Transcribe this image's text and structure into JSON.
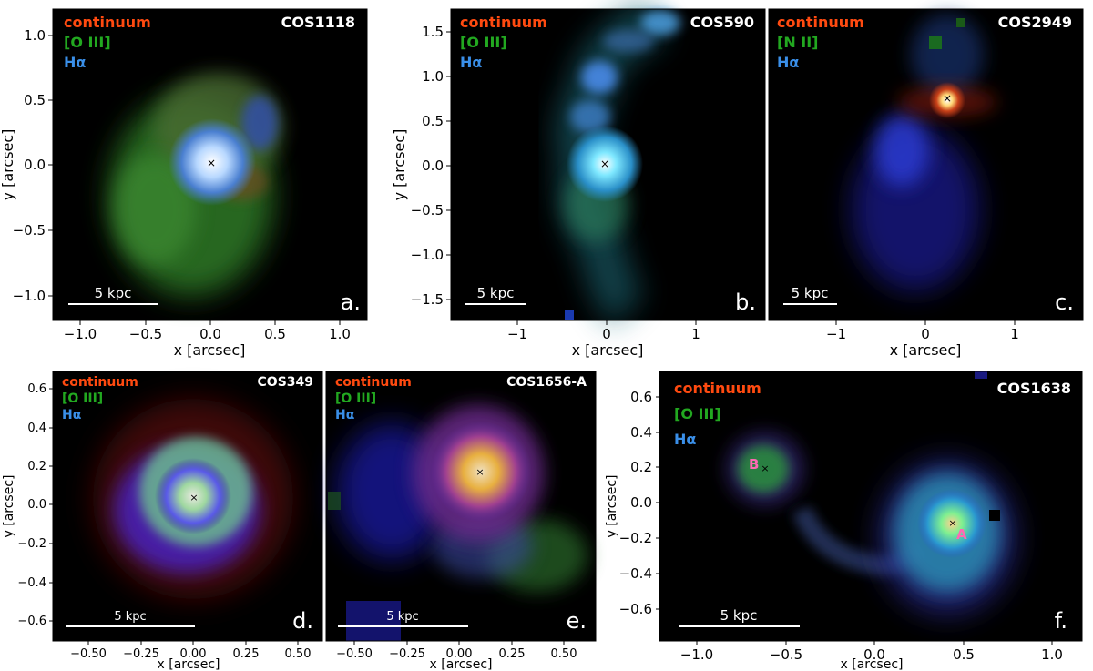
{
  "colors": {
    "continuum": "#ff4a10",
    "oiii": "#22a820",
    "halpha": "#3a8fe8",
    "component": "#ff69b4"
  },
  "legend": {
    "continuum": "continuum",
    "oiii": "[O III]",
    "nii": "[N II]",
    "halpha": "Hα"
  },
  "axes": {
    "xlabel": "x [arcsec]",
    "ylabel": "y [arcsec]"
  },
  "panels": {
    "a": {
      "name": "COS1118",
      "letter": "a.",
      "scale": "5 kpc",
      "xticks": [
        "−1.0",
        "−0.5",
        "0.0",
        "0.5",
        "1.0"
      ],
      "yticks": [
        "1.0",
        "0.5",
        "0.0",
        "−0.5",
        "−1.0"
      ]
    },
    "b": {
      "name": "COS590",
      "letter": "b.",
      "scale": "5 kpc",
      "xticks": [
        "−1",
        "0",
        "1"
      ],
      "yticks": [
        "1.5",
        "1.0",
        "0.5",
        "0.0",
        "−0.5",
        "−1.0",
        "−1.5"
      ]
    },
    "c": {
      "name": "COS2949",
      "letter": "c.",
      "scale": "5 kpc",
      "xticks": [
        "−1",
        "0",
        "1"
      ]
    },
    "d": {
      "name": "COS349",
      "letter": "d.",
      "scale": "5 kpc",
      "xticks": [
        "−0.50",
        "−0.25",
        "0.00",
        "0.25",
        "0.50"
      ],
      "yticks": [
        "0.6",
        "0.4",
        "0.2",
        "0.0",
        "−0.2",
        "−0.4",
        "−0.6"
      ]
    },
    "e": {
      "name": "COS1656-A",
      "letter": "e.",
      "scale": "5 kpc",
      "xticks": [
        "−0.50",
        "−0.25",
        "0.00",
        "0.25",
        "0.50"
      ]
    },
    "f": {
      "name": "COS1638",
      "letter": "f.",
      "scale": "5 kpc",
      "labelA": "A",
      "labelB": "B",
      "xticks": [
        "−1.0",
        "−0.5",
        "0.0",
        "0.5",
        "1.0"
      ],
      "yticks": [
        "0.6",
        "0.4",
        "0.2",
        "0.0",
        "−0.2",
        "−0.4",
        "−0.6"
      ]
    }
  }
}
